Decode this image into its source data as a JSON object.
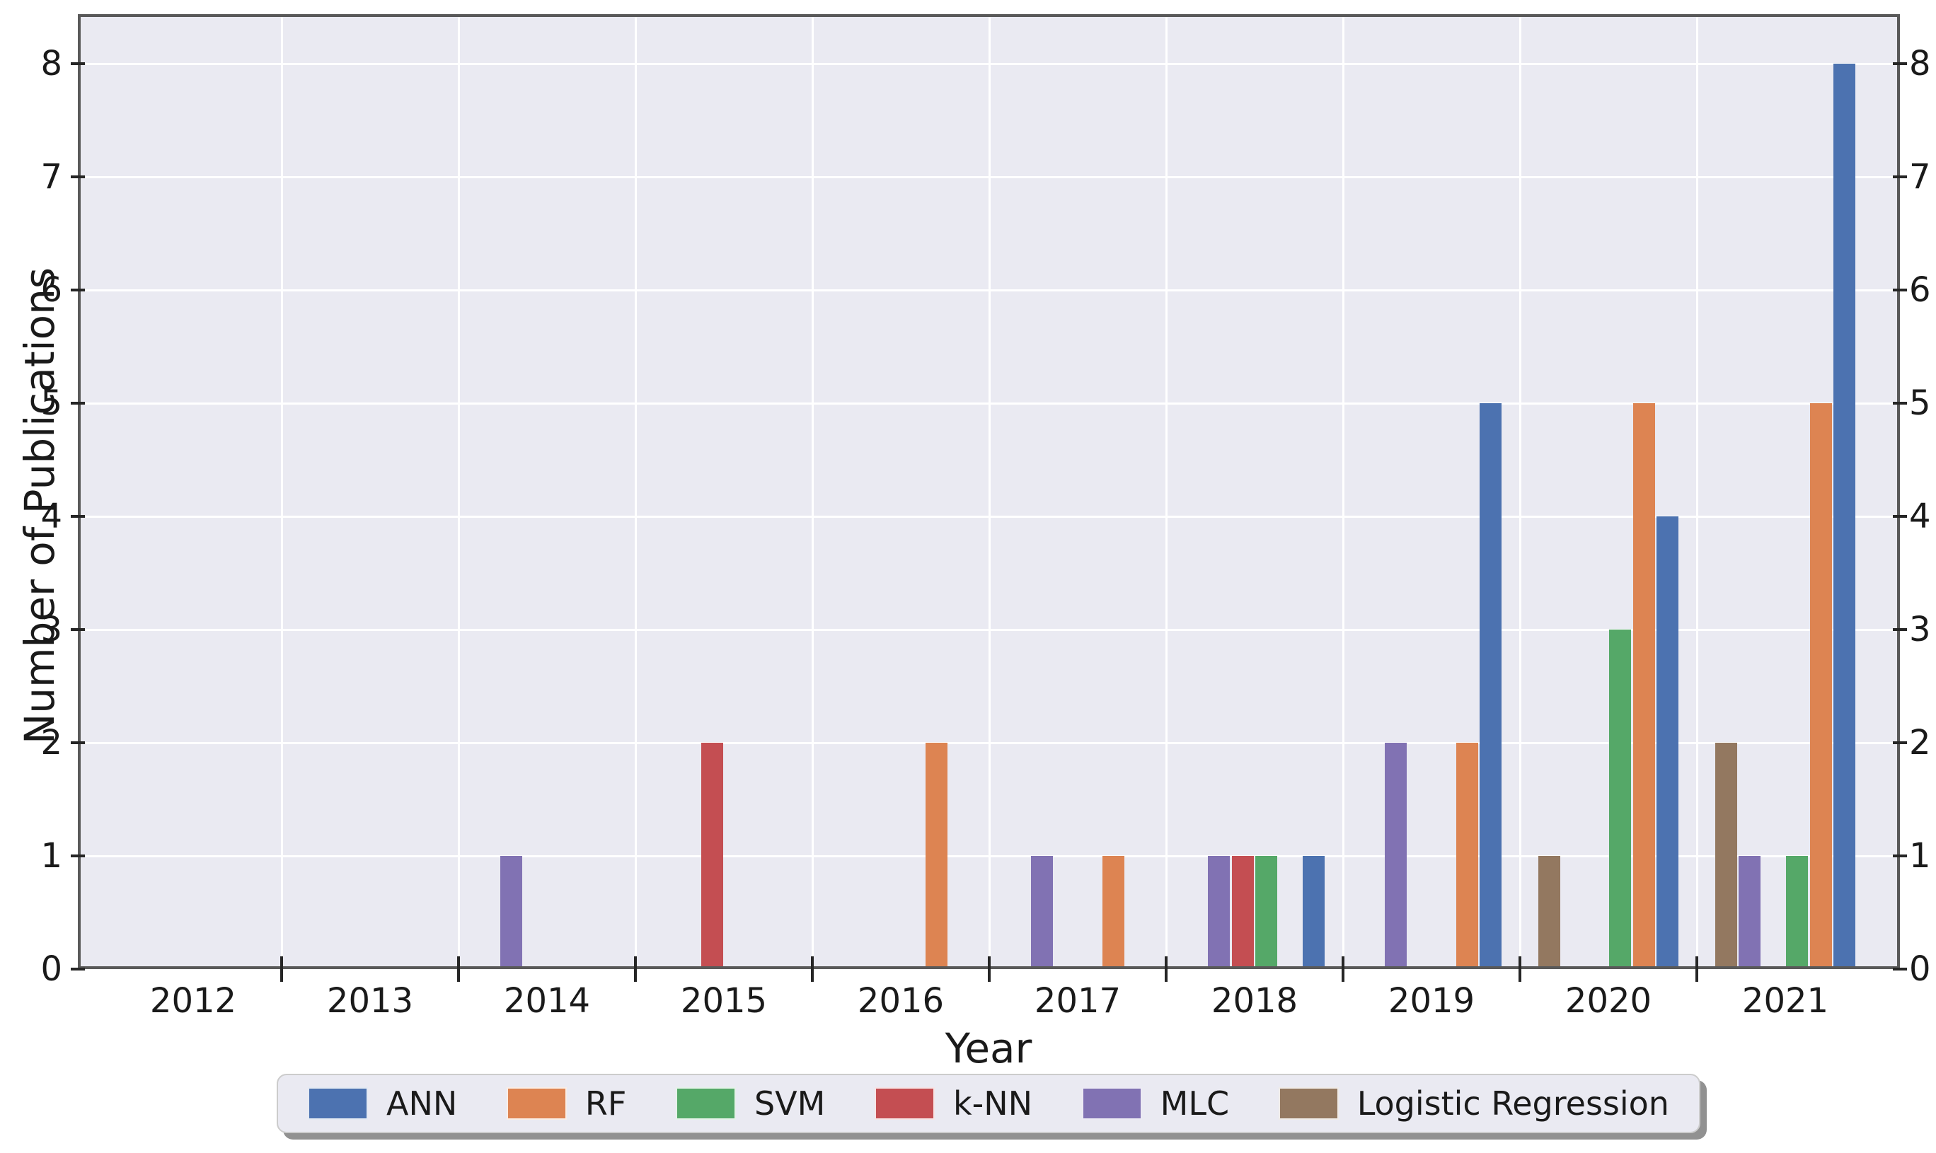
{
  "chart_data": {
    "type": "bar",
    "title": "",
    "xlabel": "Year",
    "ylabel": "Number of Publications",
    "categories": [
      "2012",
      "2013",
      "2014",
      "2015",
      "2016",
      "2017",
      "2018",
      "2019",
      "2020",
      "2021"
    ],
    "series": [
      {
        "name": "ANN",
        "color": "#4C72B0",
        "values": [
          0,
          0,
          0,
          0,
          0,
          0,
          1,
          5,
          4,
          8
        ]
      },
      {
        "name": "RF",
        "color": "#DD8452",
        "values": [
          0,
          0,
          0,
          0,
          2,
          1,
          0,
          2,
          5,
          5
        ]
      },
      {
        "name": "SVM",
        "color": "#55A868",
        "values": [
          0,
          0,
          0,
          0,
          0,
          0,
          1,
          0,
          3,
          1
        ]
      },
      {
        "name": "k-NN",
        "color": "#C44E52",
        "values": [
          0,
          0,
          0,
          2,
          0,
          0,
          1,
          0,
          0,
          0
        ]
      },
      {
        "name": "MLC",
        "color": "#8172B3",
        "values": [
          0,
          0,
          1,
          0,
          0,
          1,
          1,
          2,
          0,
          1
        ]
      },
      {
        "name": "Logistic Regression",
        "color": "#937860",
        "values": [
          0,
          0,
          0,
          0,
          0,
          0,
          0,
          0,
          1,
          2
        ]
      }
    ],
    "bar_order_within_group_left_to_right": [
      "Logistic Regression",
      "MLC",
      "k-NN",
      "SVM",
      "RF",
      "ANN"
    ],
    "y_ticks": [
      0,
      1,
      2,
      3,
      4,
      5,
      6,
      7,
      8
    ],
    "y_axis_sides": [
      "left",
      "right"
    ],
    "ylim": [
      0,
      8.44
    ],
    "grid": true,
    "legend_position": "below-center",
    "styles": {
      "plot_background": "#EAEAF2",
      "gridline_color": "#FFFFFF",
      "spine_color": "#595959",
      "tick_mark_color": "#262626",
      "text_color": "#1a1a1a",
      "legend_background": "#EAEAF2",
      "legend_border": "#CCCCCC",
      "legend_shadow": "#919191"
    }
  }
}
